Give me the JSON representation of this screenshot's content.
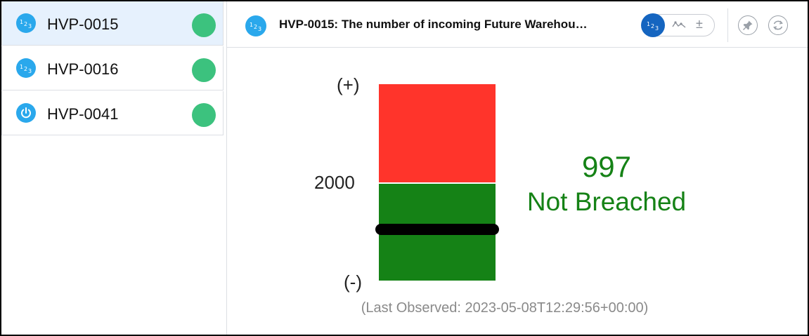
{
  "sidebar": {
    "items": [
      {
        "label": "HVP-0015",
        "icon": "numeric-icon",
        "status_color": "#3cc27e",
        "selected": true
      },
      {
        "label": "HVP-0016",
        "icon": "numeric-icon",
        "status_color": "#3cc27e",
        "selected": false
      },
      {
        "label": "HVP-0041",
        "icon": "power-icon",
        "status_color": "#3cc27e",
        "selected": false
      }
    ]
  },
  "panel": {
    "title": "HVP-0015: The number of incoming Future Warehou…",
    "icon": "numeric-icon",
    "view_toggle": {
      "active": "numeric-icon",
      "options": [
        "numeric-icon",
        "trend-icon",
        "plus-minus-icon"
      ]
    },
    "actions": [
      "pin-icon",
      "refresh-icon"
    ]
  },
  "gauge": {
    "upper_label": "(+)",
    "threshold_label": "2000",
    "lower_label": "(-)",
    "upper_color": "#ff342b",
    "lower_color": "#158216",
    "value": "997",
    "status": "Not Breached",
    "status_color": "#158216",
    "last_observed": "(Last Observed: 2023-05-08T12:29:56+00:00)"
  }
}
